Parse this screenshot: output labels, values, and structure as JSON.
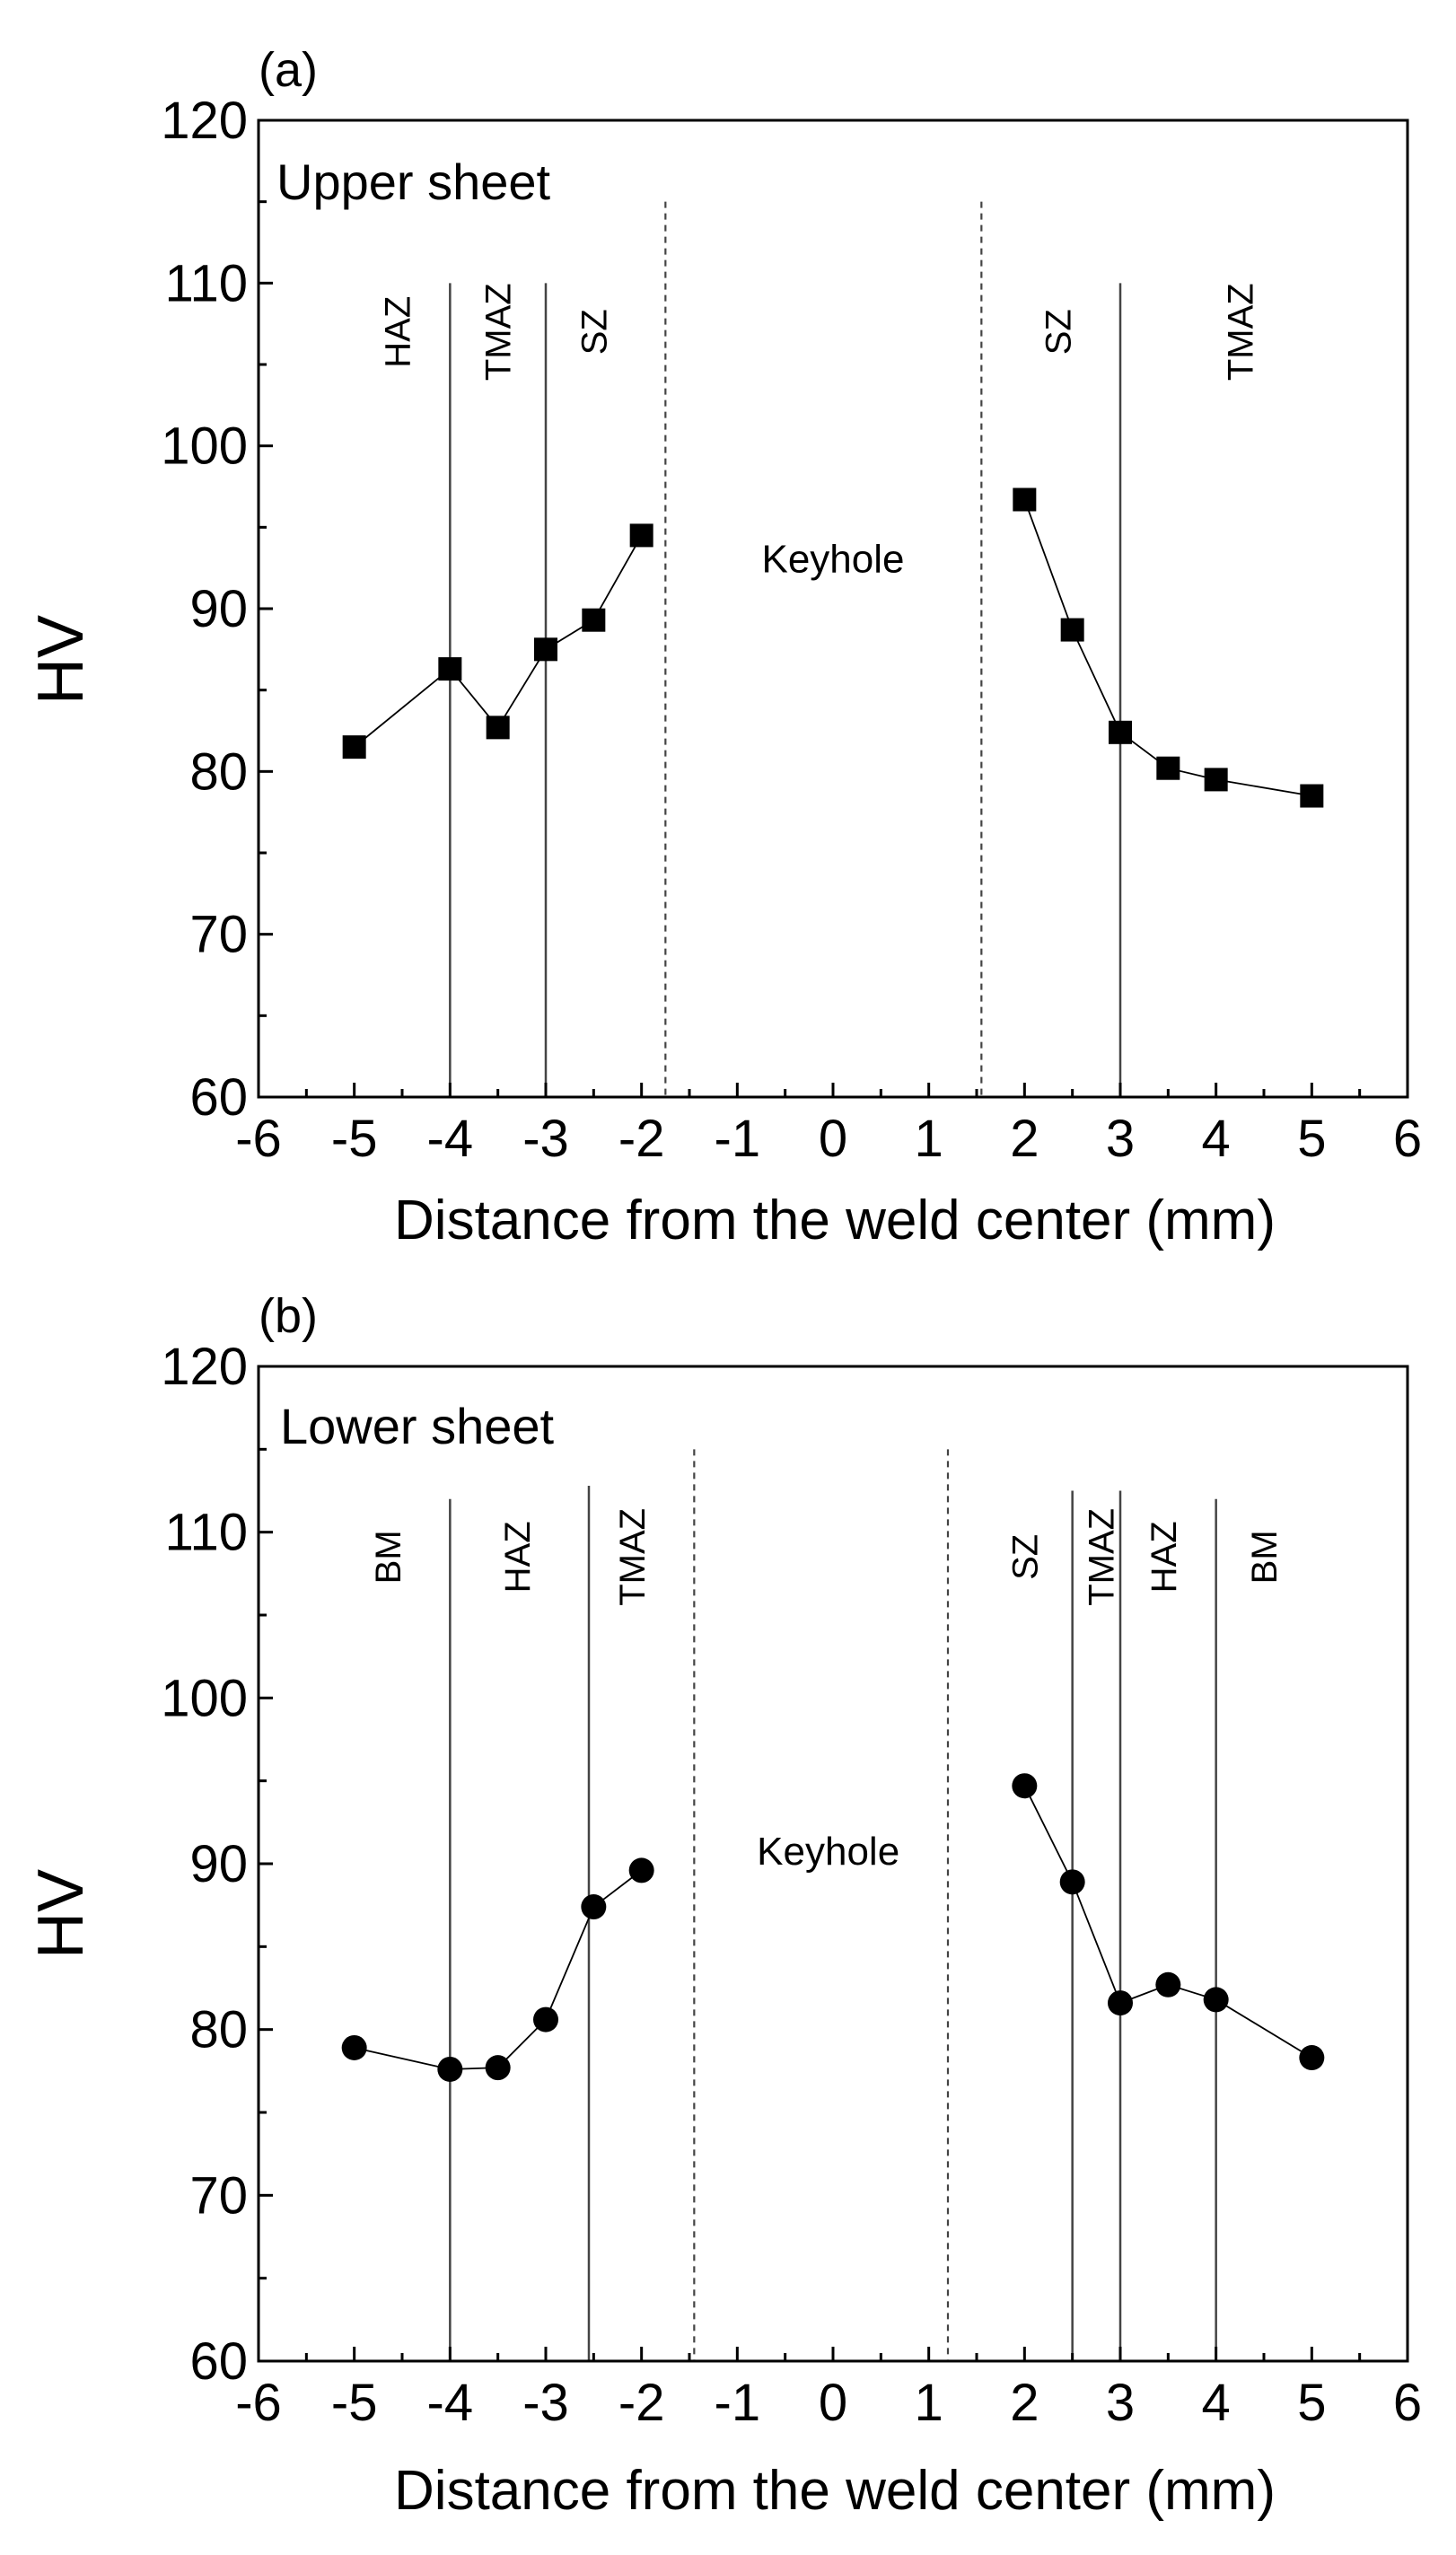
{
  "chart_data": [
    {
      "type": "line",
      "panel": "(a)",
      "sheet_label": "Upper sheet",
      "xlabel": "Distance from the weld center (mm)",
      "ylabel": "HV",
      "xlim": [
        -6,
        6
      ],
      "ylim": [
        60,
        120
      ],
      "xticks": [
        -6,
        -5,
        -4,
        -3,
        -2,
        -1,
        0,
        1,
        2,
        3,
        4,
        5,
        6
      ],
      "yticks": [
        60,
        70,
        80,
        90,
        100,
        110,
        120
      ],
      "marker": "square",
      "series": [
        {
          "name": "left",
          "x": [
            -5,
            -4,
            -3.5,
            -3,
            -2.5,
            -2
          ],
          "y": [
            81.5,
            86.3,
            82.7,
            87.5,
            89.3,
            94.5
          ]
        },
        {
          "name": "right",
          "x": [
            2,
            2.5,
            3,
            3.5,
            4,
            5
          ],
          "y": [
            96.7,
            88.7,
            82.4,
            80.2,
            79.5,
            78.5
          ]
        }
      ],
      "boundaries": [
        {
          "x": -4,
          "style": "solid",
          "top": 110
        },
        {
          "x": -3,
          "style": "solid",
          "top": 110
        },
        {
          "x": -1.75,
          "style": "dashed",
          "top": 115
        },
        {
          "x": 1.55,
          "style": "dashed",
          "top": 115
        },
        {
          "x": 3,
          "style": "solid",
          "top": 110
        }
      ],
      "zones": [
        {
          "label": "HAZ",
          "x": -4.55,
          "y": 107
        },
        {
          "label": "TMAZ",
          "x": -3.5,
          "y": 107
        },
        {
          "label": "SZ",
          "x": -2.5,
          "y": 107
        },
        {
          "label": "SZ",
          "x": 2.35,
          "y": 107
        },
        {
          "label": "TMAZ",
          "x": 4.25,
          "y": 107
        }
      ],
      "keyhole": {
        "label": "Keyhole",
        "x": 0,
        "y": 93
      }
    },
    {
      "type": "line",
      "panel": "(b)",
      "sheet_label": "Lower sheet",
      "xlabel": "Distance from the weld center (mm)",
      "ylabel": "HV",
      "xlim": [
        -6,
        6
      ],
      "ylim": [
        60,
        120
      ],
      "xticks": [
        -6,
        -5,
        -4,
        -3,
        -2,
        -1,
        0,
        1,
        2,
        3,
        4,
        5,
        6
      ],
      "yticks": [
        60,
        70,
        80,
        90,
        100,
        110,
        120
      ],
      "marker": "circle",
      "series": [
        {
          "name": "left",
          "x": [
            -5,
            -4,
            -3.5,
            -3,
            -2.5,
            -2
          ],
          "y": [
            78.9,
            77.6,
            77.7,
            80.6,
            87.4,
            89.6
          ]
        },
        {
          "name": "right",
          "x": [
            2,
            2.5,
            3,
            3.5,
            4,
            5
          ],
          "y": [
            94.7,
            88.9,
            81.6,
            82.7,
            81.8,
            78.3
          ]
        }
      ],
      "boundaries": [
        {
          "x": -4,
          "style": "solid",
          "top": 112
        },
        {
          "x": -2.55,
          "style": "solid",
          "top": 112.8
        },
        {
          "x": -1.45,
          "style": "dashed",
          "top": 115
        },
        {
          "x": 1.2,
          "style": "dashed",
          "top": 115
        },
        {
          "x": 2.5,
          "style": "solid",
          "top": 112.5
        },
        {
          "x": 3,
          "style": "solid",
          "top": 112.5
        },
        {
          "x": 4,
          "style": "solid",
          "top": 112
        }
      ],
      "zones": [
        {
          "label": "BM",
          "x": -4.65,
          "y": 108.5
        },
        {
          "label": "HAZ",
          "x": -3.3,
          "y": 108.5
        },
        {
          "label": "TMAZ",
          "x": -2.1,
          "y": 108.5
        },
        {
          "label": "SZ",
          "x": 2.0,
          "y": 108.5
        },
        {
          "label": "TMAZ",
          "x": 2.8,
          "y": 108.5
        },
        {
          "label": "HAZ",
          "x": 3.45,
          "y": 108.5
        },
        {
          "label": "BM",
          "x": 4.5,
          "y": 108.5
        }
      ],
      "keyhole": {
        "label": "Keyhole",
        "x": -0.05,
        "y": 90.7
      }
    }
  ]
}
